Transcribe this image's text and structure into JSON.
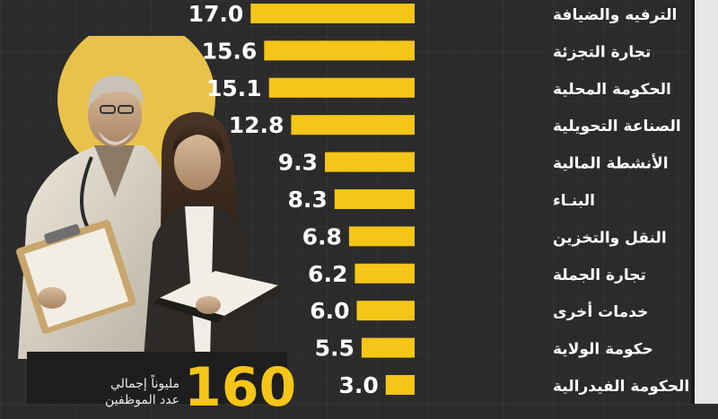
{
  "chart_data": {
    "type": "bar",
    "orientation": "horizontal",
    "categories": [
      "الترفيه والضيافة",
      "تجارة التجزئة",
      "الحكومة المحلية",
      "الصناعة التحويلية",
      "الأنشطة المالية",
      "البنـاء",
      "النقل والتخزين",
      "تجارة الجملة",
      "خدمات أخرى",
      "حكومة الولاية",
      "الحكومة الفيدرالية"
    ],
    "values": [
      17.0,
      15.6,
      15.1,
      12.8,
      9.3,
      8.3,
      6.8,
      6.2,
      6.0,
      5.5,
      3.0
    ],
    "value_labels": [
      "17.0",
      "15.6",
      "15.1",
      "12.8",
      "9.3",
      "8.3",
      "6.8",
      "6.2",
      "6.0",
      "5.5",
      "3.0"
    ],
    "bar_color": "#f5c518",
    "label_color": "#ffffff",
    "title": "",
    "xlabel": "",
    "ylabel": "",
    "grid": false
  },
  "total": {
    "number": "160",
    "caption_line1": "مليوناً إجمالي",
    "caption_line2": "عدد الموظفين"
  },
  "colors": {
    "background": "#2b2b2b",
    "accent": "#f5c518",
    "right_panel": "#e6e6e6"
  },
  "illustration": {
    "description": "photo-of-doctor-and-woman-reading-book"
  }
}
